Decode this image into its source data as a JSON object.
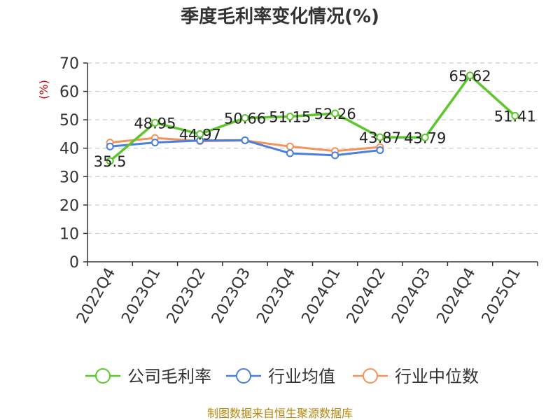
{
  "chart_data": {
    "type": "line",
    "title": "季度毛利率变化情况(%)",
    "ylabel": "(%)",
    "ylim": [
      0,
      70
    ],
    "yticks": [
      0,
      10,
      20,
      30,
      40,
      50,
      60,
      70
    ],
    "grid": true,
    "legend_position": "bottom",
    "categories": [
      "2022Q4",
      "2023Q1",
      "2023Q2",
      "2023Q3",
      "2023Q4",
      "2024Q1",
      "2024Q2",
      "2024Q3",
      "2024Q4",
      "2025Q1"
    ],
    "series": [
      {
        "name": "公司毛利率",
        "color": "#5cc72b",
        "values": [
          35.5,
          48.95,
          44.97,
          50.66,
          51.15,
          52.26,
          43.87,
          43.79,
          65.62,
          51.41
        ],
        "labels": [
          "35.5",
          "48.95",
          "44.97",
          "50.66",
          "51.15",
          "52.26",
          "43.87",
          "43.79",
          "65.62",
          "51.41"
        ]
      },
      {
        "name": "行业均值",
        "color": "#4a7fe0",
        "values": [
          40.6,
          42.0,
          42.7,
          42.8,
          38.2,
          37.5,
          39.3,
          null,
          null,
          null
        ]
      },
      {
        "name": "行业中位数",
        "color": "#f5925a",
        "values": [
          42.0,
          43.6,
          42.5,
          42.7,
          40.6,
          39.0,
          40.4,
          null,
          null,
          null
        ]
      }
    ]
  },
  "source": "制图数据来自恒生聚源数据库"
}
